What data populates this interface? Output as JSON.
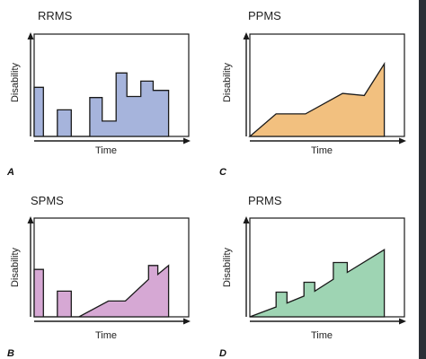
{
  "panels": [
    {
      "id": "A",
      "title": "RRMS",
      "letter": "A",
      "ylabel": "Disability",
      "xlabel": "Time",
      "color": "#a6b4dc",
      "stroke": "#1a1a1a",
      "type": "area",
      "shape": [
        [
          0,
          0
        ],
        [
          0,
          0.48
        ],
        [
          0.06,
          0.48
        ],
        [
          0.06,
          0
        ],
        [
          0.15,
          0
        ],
        [
          0.15,
          0.26
        ],
        [
          0.24,
          0.26
        ],
        [
          0.24,
          0
        ],
        [
          0.36,
          0
        ],
        [
          0.36,
          0.38
        ],
        [
          0.44,
          0.38
        ],
        [
          0.44,
          0.15
        ],
        [
          0.53,
          0.15
        ],
        [
          0.53,
          0.62
        ],
        [
          0.6,
          0.62
        ],
        [
          0.6,
          0.39
        ],
        [
          0.69,
          0.39
        ],
        [
          0.69,
          0.54
        ],
        [
          0.77,
          0.54
        ],
        [
          0.77,
          0.45
        ],
        [
          0.87,
          0.45
        ],
        [
          0.87,
          0
        ]
      ]
    },
    {
      "id": "C",
      "title": "PPMS",
      "letter": "C",
      "ylabel": "Disability",
      "xlabel": "Time",
      "color": "#f2c07f",
      "stroke": "#1a1a1a",
      "type": "area",
      "shape": [
        [
          0,
          0
        ],
        [
          0.17,
          0.22
        ],
        [
          0.36,
          0.22
        ],
        [
          0.6,
          0.42
        ],
        [
          0.74,
          0.4
        ],
        [
          0.87,
          0.71
        ],
        [
          0.87,
          0
        ]
      ]
    },
    {
      "id": "B",
      "title": "SPMS",
      "letter": "B",
      "ylabel": "Disability",
      "xlabel": "Time",
      "color": "#d6a8d4",
      "stroke": "#1a1a1a",
      "type": "area",
      "shape": [
        [
          0,
          0
        ],
        [
          0,
          0.48
        ],
        [
          0.06,
          0.48
        ],
        [
          0.06,
          0
        ],
        [
          0.15,
          0
        ],
        [
          0.15,
          0.26
        ],
        [
          0.24,
          0.26
        ],
        [
          0.24,
          0
        ],
        [
          0.29,
          0
        ],
        [
          0.48,
          0.16
        ],
        [
          0.59,
          0.16
        ],
        [
          0.74,
          0.38
        ],
        [
          0.74,
          0.52
        ],
        [
          0.8,
          0.52
        ],
        [
          0.8,
          0.43
        ],
        [
          0.87,
          0.52
        ],
        [
          0.87,
          0
        ]
      ]
    },
    {
      "id": "D",
      "title": "PRMS",
      "letter": "D",
      "ylabel": "Disability",
      "xlabel": "Time",
      "color": "#9ed4b3",
      "stroke": "#1a1a1a",
      "type": "area",
      "shape": [
        [
          0,
          0
        ],
        [
          0.17,
          0.1
        ],
        [
          0.17,
          0.25
        ],
        [
          0.24,
          0.25
        ],
        [
          0.24,
          0.14
        ],
        [
          0.35,
          0.21
        ],
        [
          0.35,
          0.35
        ],
        [
          0.42,
          0.35
        ],
        [
          0.42,
          0.26
        ],
        [
          0.54,
          0.38
        ],
        [
          0.54,
          0.55
        ],
        [
          0.63,
          0.55
        ],
        [
          0.63,
          0.45
        ],
        [
          0.87,
          0.68
        ],
        [
          0.87,
          0
        ]
      ]
    }
  ]
}
